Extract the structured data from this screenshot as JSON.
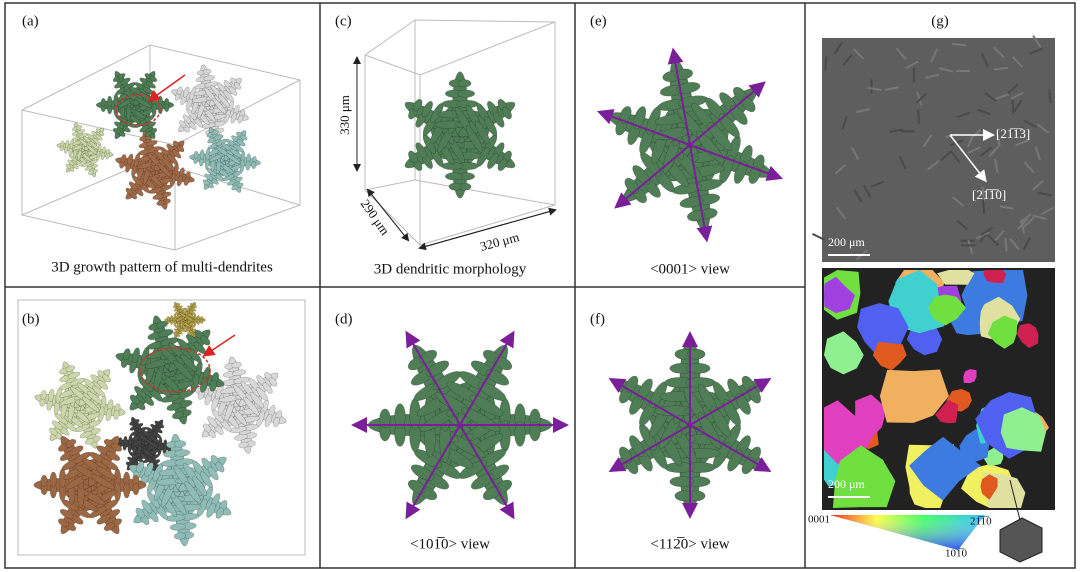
{
  "panels": [
    {
      "label": "(a)",
      "caption": "3D growth pattern of multi-dendrites"
    },
    {
      "label": "(b)"
    },
    {
      "label": "(c)",
      "caption": "3D dendritic morphology",
      "dimensions": [
        "330 μm",
        "290 μm",
        "320 μm"
      ]
    },
    {
      "label": "(d)",
      "caption": "<101̅0> view"
    },
    {
      "label": "(e)",
      "caption": "<0001> view"
    },
    {
      "label": "(f)",
      "caption": "<112̅0> view"
    },
    {
      "label": "(g)",
      "directions": [
        "[21̅1̅3]",
        "[21̅1̅0]"
      ],
      "scale_bars": [
        "200 μm",
        "200 μm"
      ],
      "legend": [
        "0001",
        "21̅1̅0",
        "101̅0"
      ]
    }
  ]
}
